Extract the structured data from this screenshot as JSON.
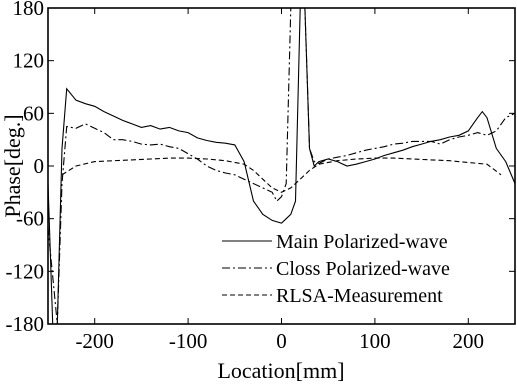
{
  "chart_data": {
    "type": "line",
    "xlabel": "Location[mm]",
    "ylabel": "Phase[deg.]",
    "xlim": [
      -250,
      250
    ],
    "ylim": [
      -180,
      180
    ],
    "xticks": [
      -200,
      -100,
      0,
      100,
      200
    ],
    "yticks": [
      -180,
      -120,
      -60,
      0,
      60,
      120,
      180
    ],
    "grid": false,
    "legend_position": "bottom-right",
    "series": [
      {
        "name": "Main Polarized-wave",
        "style": "solid",
        "x": [
          -250,
          -245,
          -240,
          -235,
          -230,
          -220,
          -210,
          -200,
          -190,
          -180,
          -170,
          -160,
          -150,
          -140,
          -130,
          -120,
          -110,
          -100,
          -90,
          -80,
          -70,
          -60,
          -50,
          -40,
          -30,
          -20,
          -10,
          0,
          5,
          10,
          15,
          20,
          25,
          30,
          35,
          40,
          50,
          60,
          70,
          80,
          90,
          100,
          110,
          120,
          130,
          140,
          150,
          160,
          170,
          180,
          190,
          200,
          210,
          215,
          220,
          230,
          240,
          250
        ],
        "y": [
          -20,
          -180,
          -180,
          20,
          88,
          75,
          71,
          68,
          62,
          57,
          52,
          48,
          44,
          46,
          42,
          44,
          40,
          38,
          32,
          29,
          27,
          26,
          24,
          5,
          -40,
          -55,
          -62,
          -65,
          -60,
          -55,
          -40,
          180,
          180,
          20,
          0,
          5,
          8,
          5,
          0,
          2,
          5,
          8,
          12,
          15,
          18,
          22,
          25,
          28,
          30,
          33,
          35,
          40,
          55,
          62,
          55,
          20,
          5,
          -20
        ]
      },
      {
        "name": "Closs Polarized-wave",
        "style": "dashdot",
        "x": [
          -250,
          -240,
          -235,
          -230,
          -220,
          -210,
          -200,
          -190,
          -180,
          -170,
          -160,
          -150,
          -140,
          -130,
          -120,
          -110,
          -100,
          -90,
          -80,
          -70,
          -60,
          -50,
          -40,
          -30,
          -20,
          -10,
          -5,
          0,
          5,
          10,
          15,
          20,
          25,
          30,
          35,
          40,
          50,
          60,
          70,
          80,
          90,
          100,
          110,
          120,
          130,
          140,
          150,
          160,
          170,
          180,
          190,
          200,
          210,
          220,
          230,
          240,
          250
        ],
        "y": [
          -70,
          -180,
          -20,
          45,
          43,
          48,
          43,
          38,
          30,
          30,
          28,
          25,
          24,
          25,
          22,
          20,
          14,
          8,
          0,
          -5,
          -8,
          -10,
          -15,
          -20,
          -25,
          -30,
          -40,
          -35,
          -20,
          180,
          180,
          180,
          180,
          20,
          5,
          3,
          8,
          10,
          12,
          15,
          18,
          20,
          22,
          25,
          26,
          28,
          28,
          28,
          25,
          30,
          33,
          35,
          38,
          35,
          40,
          55,
          60
        ]
      },
      {
        "name": "RLSA-Measurement",
        "style": "dashed",
        "x": [
          -235,
          -220,
          -200,
          -180,
          -160,
          -140,
          -120,
          -100,
          -80,
          -60,
          -40,
          -30,
          -20,
          -10,
          0,
          10,
          20,
          30,
          40,
          60,
          80,
          100,
          120,
          140,
          160,
          180,
          200,
          220,
          235
        ],
        "y": [
          -10,
          0,
          5,
          6,
          7,
          8,
          9,
          9,
          8,
          6,
          2,
          -5,
          -15,
          -25,
          -30,
          -25,
          -15,
          -5,
          2,
          6,
          8,
          9,
          9,
          8,
          7,
          6,
          4,
          2,
          -10
        ]
      }
    ]
  }
}
